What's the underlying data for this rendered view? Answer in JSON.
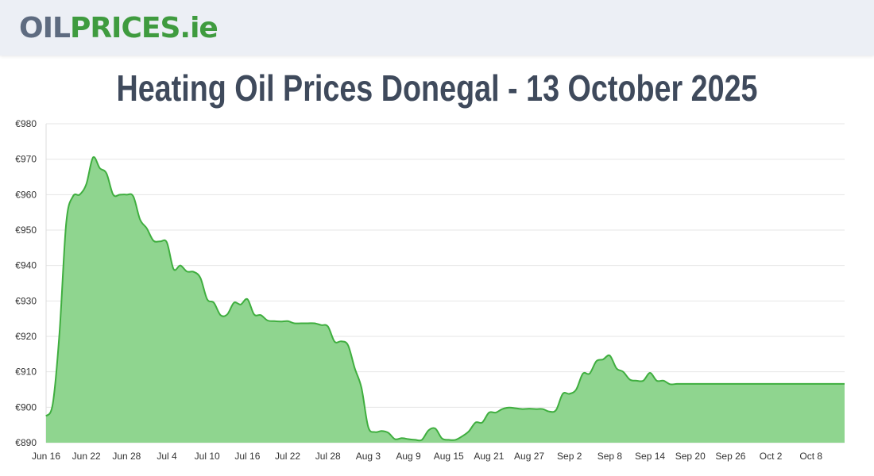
{
  "header": {
    "logo_oil": "OIL",
    "logo_prices": "PRICES",
    "logo_tld": ".ie"
  },
  "page_title": "Heating Oil Prices Donegal - 13 October 2025",
  "colors": {
    "line": "#3fae3f",
    "fill": "#8fd58f",
    "header_bg": "#eceff5",
    "title": "#3f4a5c",
    "grid": "#e6e6e6"
  },
  "chart_data": {
    "type": "area",
    "title": "",
    "xlabel": "",
    "ylabel": "",
    "ylim": [
      890,
      980
    ],
    "y_ticks": [
      "€890",
      "€900",
      "€910",
      "€920",
      "€930",
      "€940",
      "€950",
      "€960",
      "€970",
      "€980"
    ],
    "x_tick_labels": [
      "Jun 16",
      "Jun 22",
      "Jun 28",
      "Jul 4",
      "Jul 10",
      "Jul 16",
      "Jul 22",
      "Jul 28",
      "Aug 3",
      "Aug 9",
      "Aug 15",
      "Aug 21",
      "Aug 27",
      "Sep 2",
      "Sep 8",
      "Sep 14",
      "Sep 20",
      "Sep 26",
      "Oct 2",
      "Oct 8"
    ],
    "grid": true,
    "legend": "none",
    "x": [
      "2025-06-16",
      "2025-06-17",
      "2025-06-18",
      "2025-06-19",
      "2025-06-20",
      "2025-06-21",
      "2025-06-22",
      "2025-06-23",
      "2025-06-24",
      "2025-06-25",
      "2025-06-26",
      "2025-06-27",
      "2025-06-28",
      "2025-06-29",
      "2025-06-30",
      "2025-07-01",
      "2025-07-02",
      "2025-07-03",
      "2025-07-04",
      "2025-07-05",
      "2025-07-06",
      "2025-07-07",
      "2025-07-08",
      "2025-07-09",
      "2025-07-10",
      "2025-07-11",
      "2025-07-12",
      "2025-07-13",
      "2025-07-14",
      "2025-07-15",
      "2025-07-16",
      "2025-07-17",
      "2025-07-18",
      "2025-07-19",
      "2025-07-20",
      "2025-07-21",
      "2025-07-22",
      "2025-07-23",
      "2025-07-24",
      "2025-07-25",
      "2025-07-26",
      "2025-07-27",
      "2025-07-28",
      "2025-07-29",
      "2025-07-30",
      "2025-07-31",
      "2025-08-01",
      "2025-08-02",
      "2025-08-03",
      "2025-08-04",
      "2025-08-05",
      "2025-08-06",
      "2025-08-07",
      "2025-08-08",
      "2025-08-09",
      "2025-08-10",
      "2025-08-11",
      "2025-08-12",
      "2025-08-13",
      "2025-08-14",
      "2025-08-15",
      "2025-08-16",
      "2025-08-17",
      "2025-08-18",
      "2025-08-19",
      "2025-08-20",
      "2025-08-21",
      "2025-08-22",
      "2025-08-23",
      "2025-08-24",
      "2025-08-25",
      "2025-08-26",
      "2025-08-27",
      "2025-08-28",
      "2025-08-29",
      "2025-08-30",
      "2025-08-31",
      "2025-09-01",
      "2025-09-02",
      "2025-09-03",
      "2025-09-04",
      "2025-09-05",
      "2025-09-06",
      "2025-09-07",
      "2025-09-08",
      "2025-09-09",
      "2025-09-10",
      "2025-09-11",
      "2025-09-12",
      "2025-09-13",
      "2025-09-14",
      "2025-09-15",
      "2025-09-16",
      "2025-09-17",
      "2025-09-18",
      "2025-09-19",
      "2025-09-20",
      "2025-09-21",
      "2025-09-22",
      "2025-09-23",
      "2025-09-24",
      "2025-09-25",
      "2025-09-26",
      "2025-09-27",
      "2025-09-28",
      "2025-09-29",
      "2025-09-30",
      "2025-10-01",
      "2025-10-02",
      "2025-10-03",
      "2025-10-04",
      "2025-10-05",
      "2025-10-06",
      "2025-10-07",
      "2025-10-08",
      "2025-10-09",
      "2025-10-10",
      "2025-10-11",
      "2025-10-12",
      "2025-10-13"
    ],
    "series": [
      {
        "values": [
          897.5,
          901,
          921,
          952,
          959.5,
          960,
          963,
          970.5,
          967.5,
          966,
          960,
          960,
          960,
          959.5,
          953,
          950.5,
          947,
          946.8,
          946.5,
          939,
          940,
          938.3,
          938.2,
          936.5,
          930.5,
          929.5,
          926,
          926.2,
          929.5,
          929,
          930.5,
          926.2,
          926,
          924.5,
          924.3,
          924.2,
          924.3,
          923.7,
          923.7,
          923.7,
          923.7,
          923.2,
          922.8,
          918.5,
          918.6,
          917.5,
          911,
          905.5,
          894.5,
          893,
          893.3,
          892.8,
          891,
          891.3,
          891,
          890.8,
          890.8,
          893.5,
          894,
          891.2,
          890.8,
          890.8,
          891.8,
          893.2,
          895.7,
          895.7,
          898.5,
          898.5,
          899.5,
          899.9,
          899.7,
          899.5,
          899.6,
          899.5,
          899.5,
          898.8,
          899.2,
          903.8,
          903.8,
          905,
          909.5,
          909.5,
          913,
          913.5,
          914.6,
          911,
          910,
          907.8,
          907.5,
          907.5,
          909.7,
          907.5,
          907.5,
          906.5,
          906.6,
          906.6,
          906.6,
          906.6,
          906.6,
          906.6,
          906.6,
          906.6,
          906.6,
          906.6,
          906.6,
          906.6,
          906.6,
          906.6,
          906.6,
          906.6,
          906.6,
          906.6,
          906.6,
          906.6,
          906.6,
          906.6,
          906.6,
          906.6,
          906.6,
          906.6
        ]
      }
    ]
  }
}
